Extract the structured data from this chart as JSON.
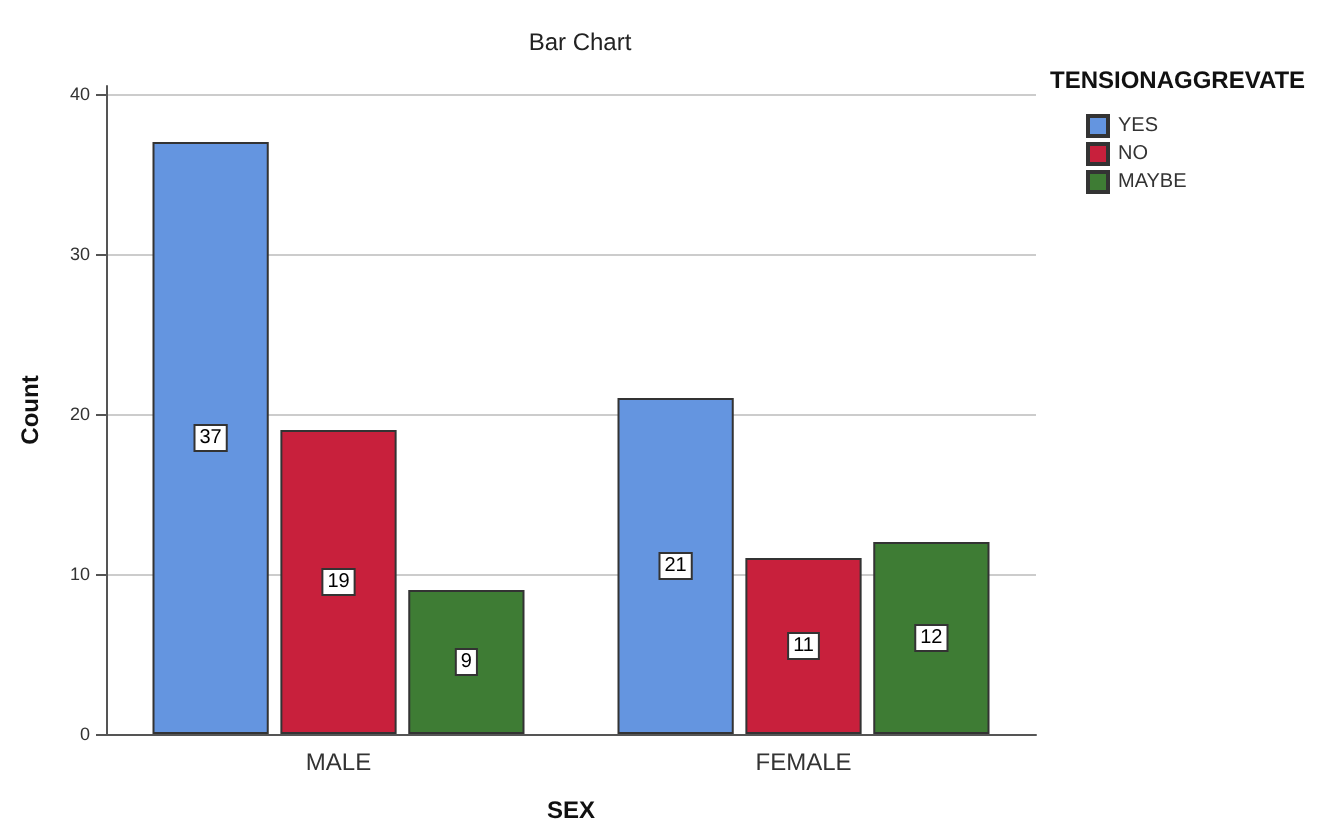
{
  "chart_data": {
    "type": "bar",
    "title": "Bar Chart",
    "xlabel": "SEX",
    "ylabel": "Count",
    "legend_title": "TENSIONAGGREVATE",
    "categories": [
      "MALE",
      "FEMALE"
    ],
    "series": [
      {
        "name": "YES",
        "color": "#6495e0",
        "values": [
          37,
          21
        ]
      },
      {
        "name": "NO",
        "color": "#c8203c",
        "values": [
          19,
          11
        ]
      },
      {
        "name": "MAYBE",
        "color": "#3e7c34",
        "values": [
          9,
          12
        ]
      }
    ],
    "ylim": [
      0,
      40.5
    ],
    "yticks": [
      0,
      10,
      20,
      30,
      40
    ],
    "grid": "y",
    "legend": "top right",
    "data_labels": true
  }
}
